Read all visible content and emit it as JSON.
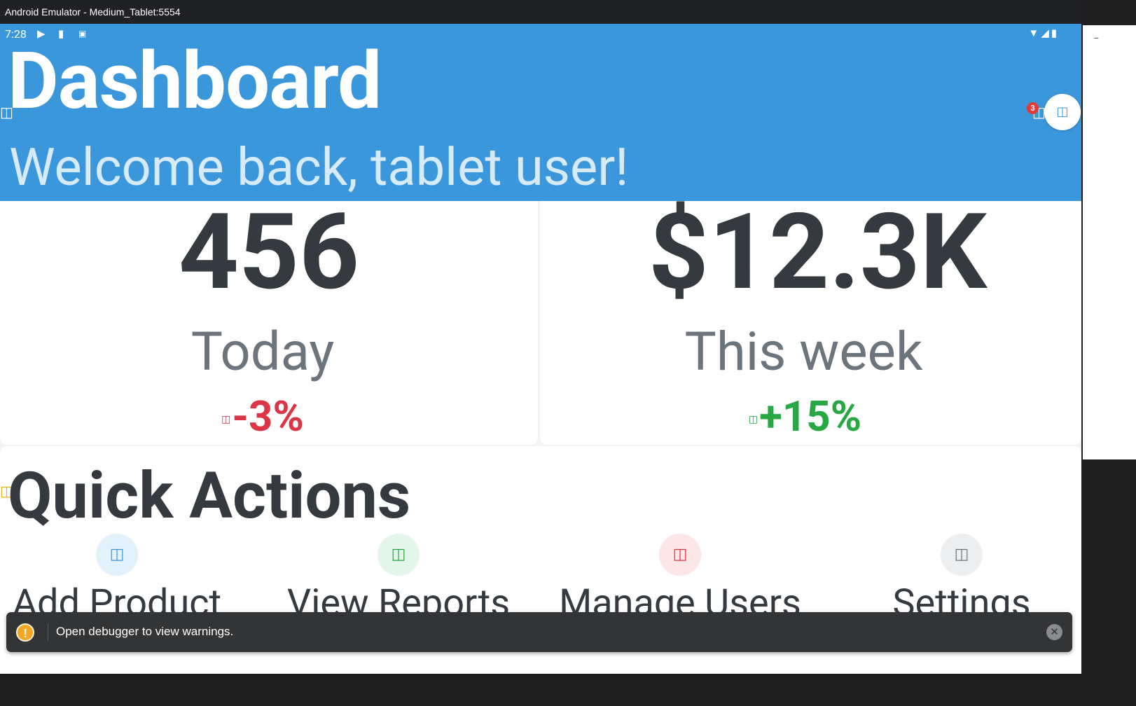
{
  "window": {
    "title": "Android Emulator - Medium_Tablet:5554"
  },
  "status_bar": {
    "time": "7:28",
    "left_icons": [
      "play-protect-icon",
      "sd-card-icon",
      "keyboard-a-icon"
    ],
    "right_icons": [
      "wifi-icon",
      "signal-icon",
      "battery-icon"
    ]
  },
  "header": {
    "title": "Dashboard",
    "subtitle": "Welcome back, tablet user!",
    "notification_count": "3",
    "background_color": "#3a97dc"
  },
  "stats": [
    {
      "value": "456",
      "label": "Today",
      "change": "-3%",
      "trend": "down",
      "change_color": "#dc3545"
    },
    {
      "value": "$12.3K",
      "label": "This week",
      "change": "+15%",
      "trend": "up",
      "change_color": "#28a745"
    }
  ],
  "quick_actions": {
    "title": "Quick Actions",
    "items": [
      {
        "label": "Add Product",
        "icon": "add-product-icon",
        "color": "#3a97dc"
      },
      {
        "label": "View Reports",
        "icon": "reports-icon",
        "color": "#28a745"
      },
      {
        "label": "Manage Users",
        "icon": "users-icon",
        "color": "#dc3545"
      },
      {
        "label": "Settings",
        "icon": "settings-icon",
        "color": "#6c757d"
      }
    ]
  },
  "toast": {
    "message": "Open debugger to view warnings.",
    "icon": "warning-icon"
  }
}
